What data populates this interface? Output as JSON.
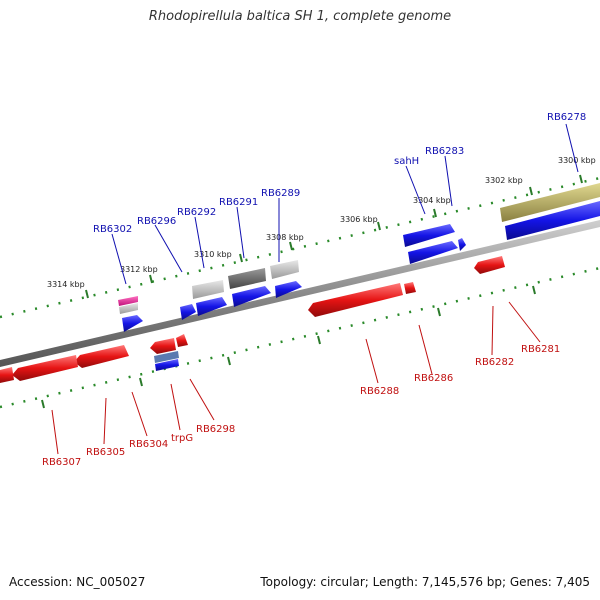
{
  "title": "Rhodopirellula baltica SH 1, complete genome",
  "footer": {
    "accession": "Accession: NC_005027",
    "topology": "Topology: circular; Length: 7,145,576 bp; Genes: 7,405"
  },
  "colors": {
    "forward": "#1414e6",
    "reverse": "#e61414",
    "rna": "#a0a0a0",
    "pseudo": "#b0a860",
    "backbone": "#8a8a8a",
    "ticks": "#2a8a2a",
    "label_forward": "#1010b0",
    "label_reverse": "#c01010"
  },
  "scale_labels": [
    "3300 kbp",
    "3302 kbp",
    "3304 kbp",
    "3306 kbp",
    "3308 kbp",
    "3310 kbp",
    "3312 kbp",
    "3314 kbp"
  ],
  "labels_top": [
    "RB6278",
    "RB6283",
    "sahH",
    "RB6289",
    "RB6291",
    "RB6292",
    "RB6296",
    "RB6302"
  ],
  "labels_bottom": [
    "RB6281",
    "RB6282",
    "RB6286",
    "RB6288",
    "RB6298",
    "trpG",
    "RB6304",
    "RB6305",
    "RB6307"
  ]
}
